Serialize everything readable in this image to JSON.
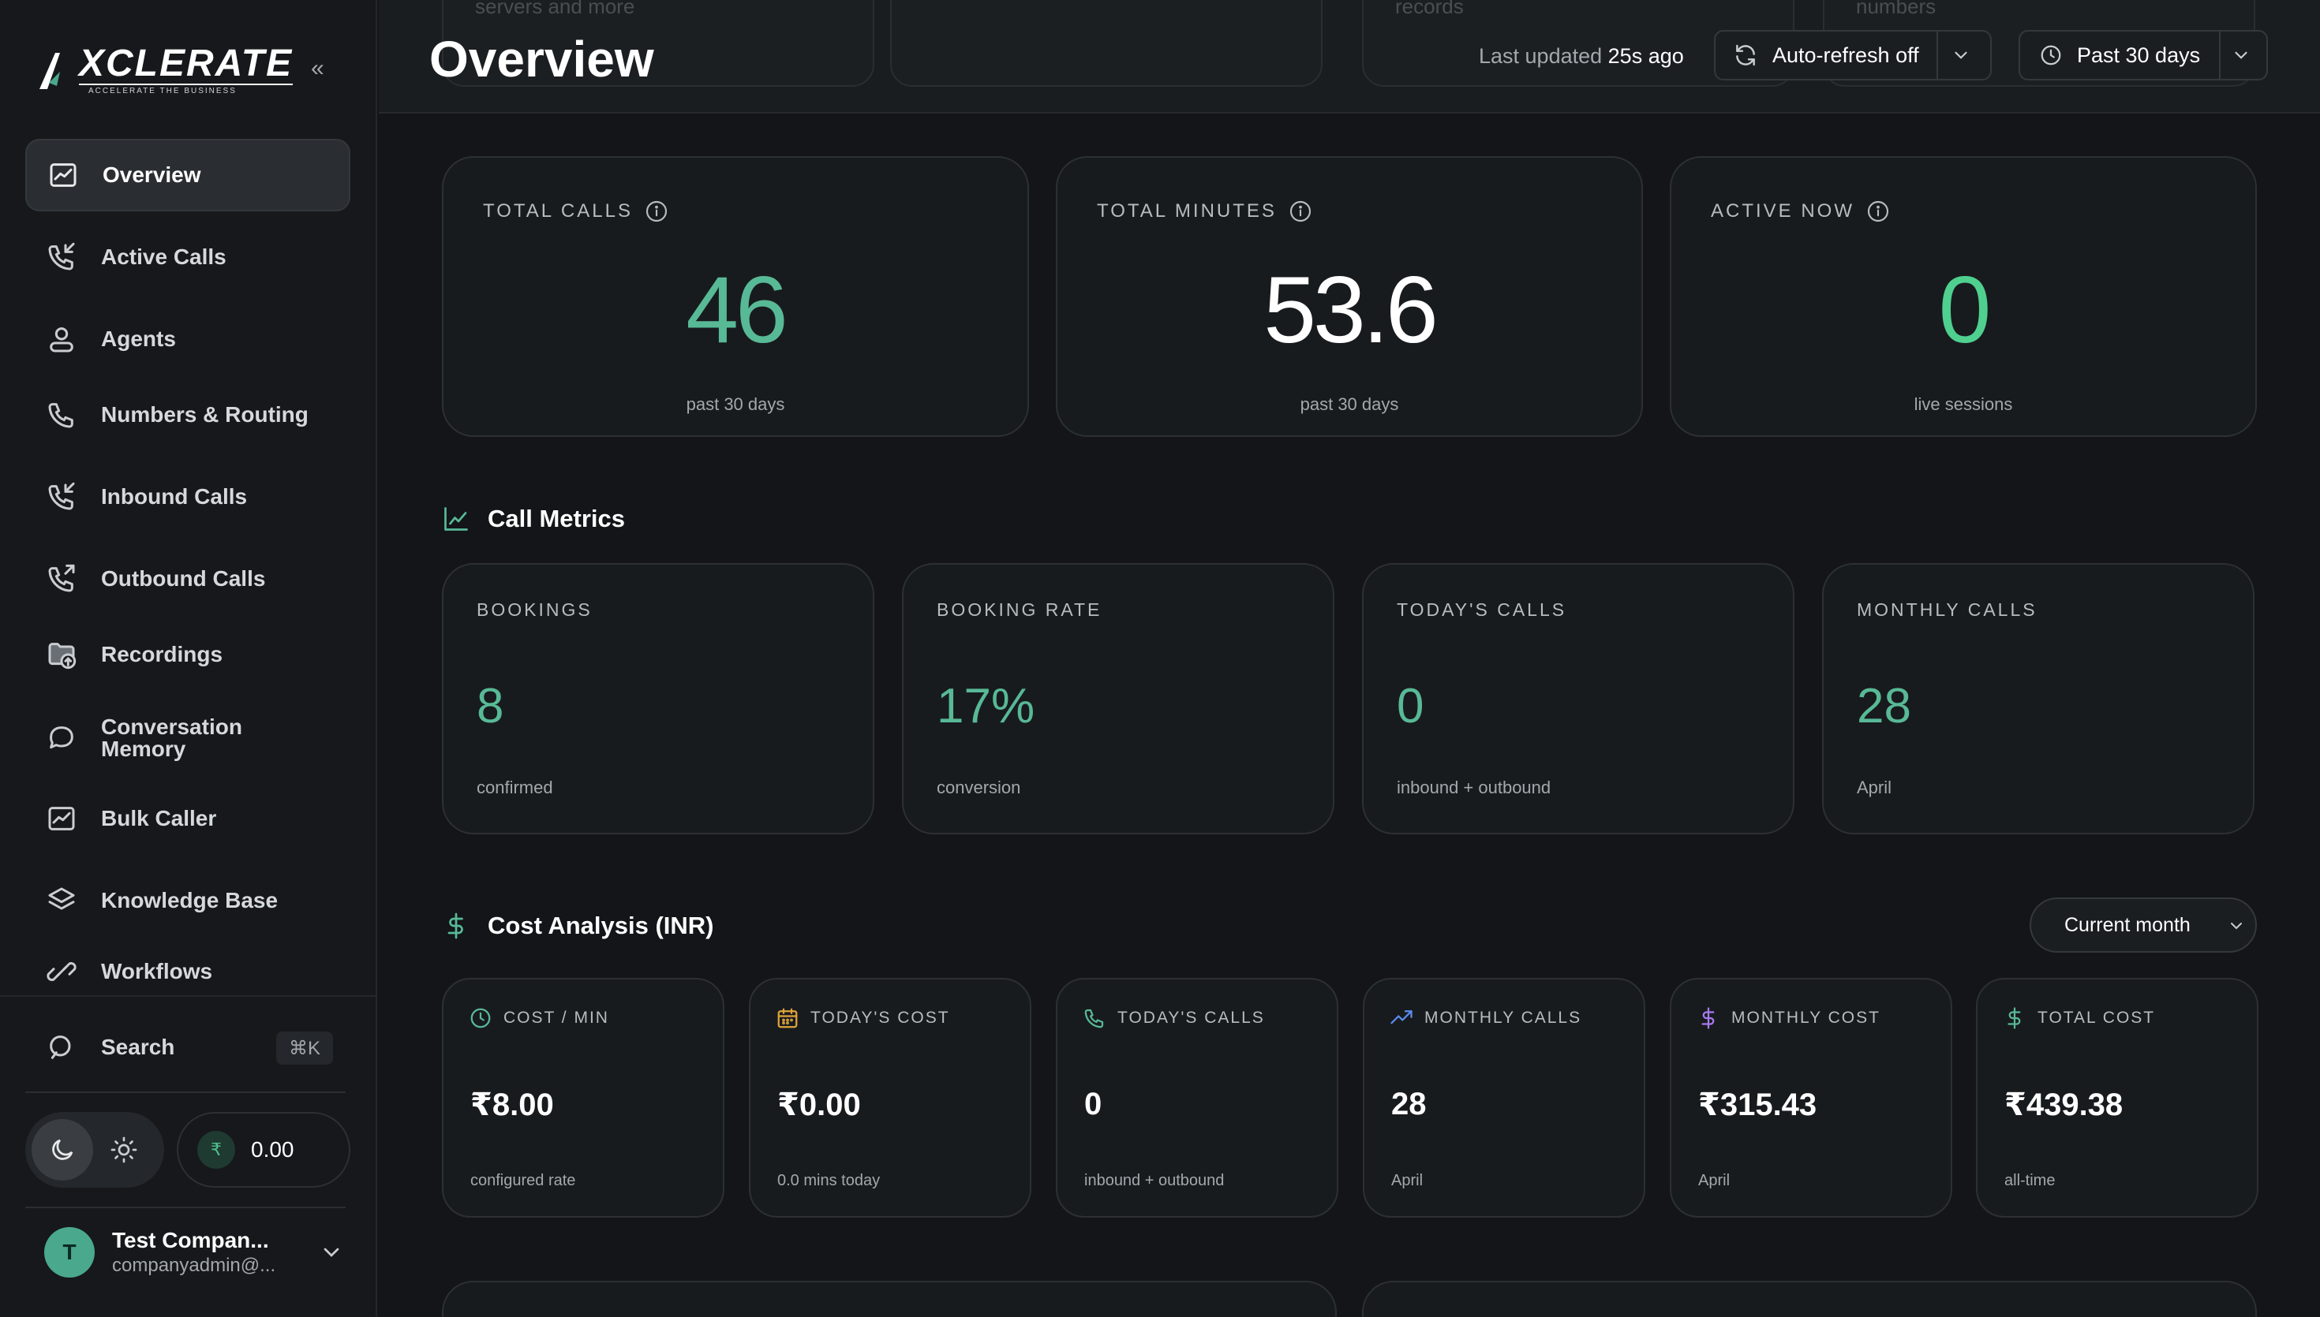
{
  "brand": {
    "name": "XCLERATE",
    "tagline": "ACCELERATE THE BUSINESS"
  },
  "sidebar": {
    "collapse_label": "«",
    "items": [
      {
        "label": "Overview",
        "icon": "chart-icon",
        "active": true
      },
      {
        "label": "Active Calls",
        "icon": "phone-incoming-icon"
      },
      {
        "label": "Agents",
        "icon": "user-icon"
      },
      {
        "label": "Numbers & Routing",
        "icon": "phone-icon"
      },
      {
        "label": "Inbound Calls",
        "icon": "phone-incoming-icon"
      },
      {
        "label": "Outbound Calls",
        "icon": "phone-outgoing-icon"
      },
      {
        "label": "Recordings",
        "icon": "folder-upload-icon"
      },
      {
        "label": "Conversation Memory",
        "icon": "chat-bubble-icon"
      },
      {
        "label": "Bulk Caller",
        "icon": "chart-icon"
      },
      {
        "label": "Knowledge Base",
        "icon": "layers-icon"
      },
      {
        "label": "Workflows",
        "icon": "workflow-icon"
      }
    ],
    "search": {
      "label": "Search",
      "shortcut": "⌘K"
    },
    "balance": {
      "currency": "₹",
      "value": "0.00"
    },
    "user": {
      "initial": "T",
      "name": "Test Compan...",
      "email": "companyadmin@..."
    }
  },
  "topbar": {
    "title": "Overview",
    "last_updated_prefix": "Last updated",
    "last_updated_value": "25s ago",
    "auto_refresh_label": "Auto-refresh off",
    "range_label": "Past 30 days",
    "ghost_texts": [
      "servers and more",
      "records",
      "numbers"
    ]
  },
  "kpis": [
    {
      "title": "TOTAL CALLS",
      "value": "46",
      "sub": "past 30 days",
      "color": "#58b996"
    },
    {
      "title": "TOTAL MINUTES",
      "value": "53.6",
      "sub": "past 30 days",
      "color": "#ffffff"
    },
    {
      "title": "ACTIVE NOW",
      "value": "0",
      "sub": "live sessions",
      "color": "#4fd08f"
    }
  ],
  "call_metrics": {
    "title": "Call Metrics",
    "cards": [
      {
        "title": "BOOKINGS",
        "value": "8",
        "sub": "confirmed"
      },
      {
        "title": "BOOKING RATE",
        "value": "17%",
        "sub": "conversion"
      },
      {
        "title": "TODAY'S CALLS",
        "value": "0",
        "sub": "inbound + outbound"
      },
      {
        "title": "MONTHLY CALLS",
        "value": "28",
        "sub": "April"
      }
    ]
  },
  "cost_analysis": {
    "title": "Cost Analysis (INR)",
    "period_label": "Current month",
    "cards": [
      {
        "title": "COST / MIN",
        "value": "₹8.00",
        "sub": "configured rate",
        "icon": "clock-icon",
        "icon_color": "#58b996"
      },
      {
        "title": "TODAY'S COST",
        "value": "₹0.00",
        "sub": "0.0 mins today",
        "icon": "calendar-icon",
        "icon_color": "#e0a43a"
      },
      {
        "title": "TODAY'S CALLS",
        "value": "0",
        "sub": "inbound + outbound",
        "icon": "phone-icon",
        "icon_color": "#58b996"
      },
      {
        "title": "MONTHLY CALLS",
        "value": "28",
        "sub": "April",
        "icon": "trending-up-icon",
        "icon_color": "#5b8df0"
      },
      {
        "title": "MONTHLY COST",
        "value": "₹315.43",
        "sub": "April",
        "icon": "dollar-icon",
        "icon_color": "#a77af0"
      },
      {
        "title": "TOTAL COST",
        "value": "₹439.38",
        "sub": "all-time",
        "icon": "dollar-icon",
        "icon_color": "#58b996"
      }
    ]
  },
  "colors": {
    "accent_green": "#58b996",
    "bg": "#131518",
    "card": "#181b1e"
  }
}
